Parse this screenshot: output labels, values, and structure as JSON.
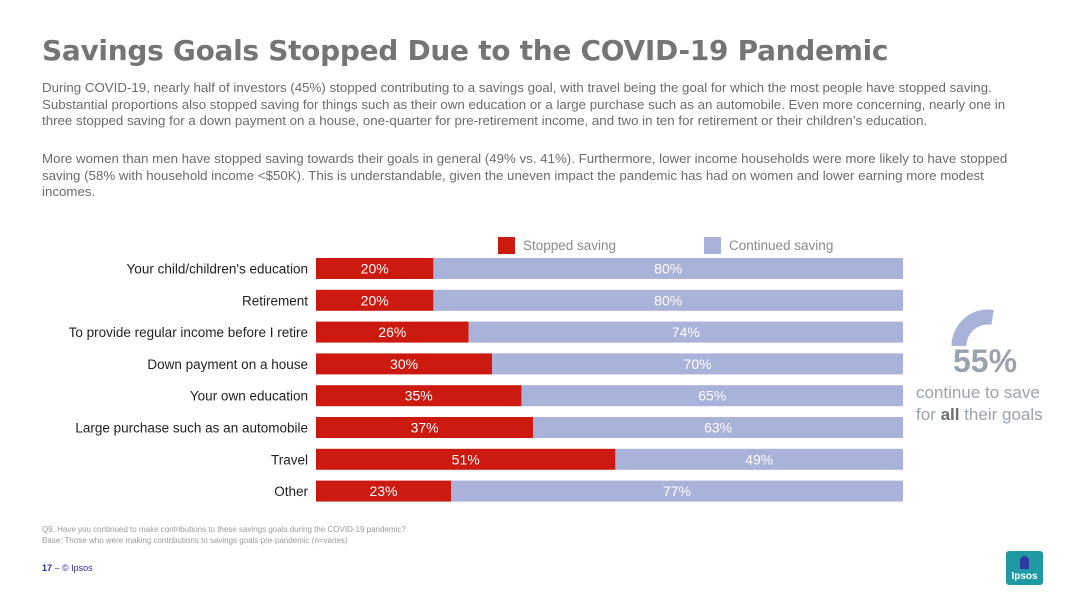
{
  "title": "Savings Goals Stopped Due to the COVID-19 Pandemic",
  "paragraphs": [
    "During COVID-19, nearly half of investors (45%) stopped contributing to a savings goal, with travel being the goal for which the most people have stopped saving. Substantial proportions also stopped saving for things such as their own education or a large purchase such as an automobile. Even more concerning, nearly one in three stopped saving for a down payment on a house, one-quarter for pre-retirement income, and two in ten for retirement or their children’s education.",
    "More women than men have stopped saving towards their goals in general (49% vs. 41%). Furthermore, lower income households were more likely to have stopped saving (58% with household income <$50K). This is understandable, given the uneven impact the pandemic has had on women and lower earning more modest incomes."
  ],
  "legend": {
    "stopped": "Stopped saving",
    "continued": "Continued saving"
  },
  "colors": {
    "stopped": "#cc1a10",
    "continued": "#a9b2d9",
    "gauge": "#a9b2d9"
  },
  "gauge": {
    "value": 55,
    "value_label": "55%",
    "line1": "continue to save",
    "line2_prefix": "for ",
    "line2_bold": "all",
    "line2_suffix": " their goals"
  },
  "chart_data": {
    "type": "bar",
    "orientation": "horizontal",
    "stacked": true,
    "categories": [
      "Your child/children's education",
      "Retirement",
      "To provide regular income before I retire",
      "Down payment on a house",
      "Your own education",
      "Large purchase such as an automobile",
      "Travel",
      "Other"
    ],
    "series": [
      {
        "name": "Stopped saving",
        "values": [
          20,
          20,
          26,
          30,
          35,
          37,
          51,
          23
        ]
      },
      {
        "name": "Continued saving",
        "values": [
          80,
          80,
          74,
          70,
          65,
          63,
          49,
          77
        ]
      }
    ],
    "value_suffix": "%",
    "xlim": [
      0,
      100
    ],
    "legend_position": "top",
    "grid": false
  },
  "footnotes": [
    "Q9. Have you continued to make contributions to these savings goals during the COVID-19 pandemic?",
    "Base: Those who were making contributions to savings goals pre-pandemic (n=varies)"
  ],
  "footer": {
    "page": "17",
    "separator": " – ",
    "copyright": "© Ipsos"
  },
  "logo_text": "Ipsos"
}
